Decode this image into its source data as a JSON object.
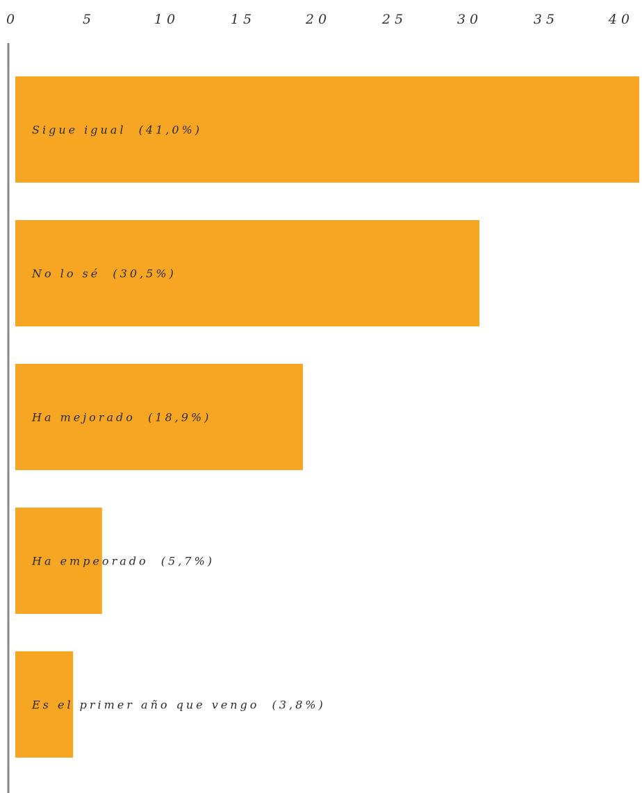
{
  "chart_data": {
    "type": "bar",
    "orientation": "horizontal",
    "categories": [
      "Sigue igual  (41,0%)",
      "No lo sé  (30,5%)",
      "Ha mejorado  (18,9%)",
      "Ha empeorado  (5,7%)",
      "Es el primer año que vengo  (3,8%)"
    ],
    "values": [
      41.0,
      30.5,
      18.9,
      5.7,
      3.8
    ],
    "xlim": [
      0,
      41
    ],
    "xticks": [
      0,
      5,
      10,
      15,
      20,
      25,
      30,
      35,
      40
    ],
    "xtick_labels": [
      "0",
      "5",
      "10",
      "15",
      "20",
      "25",
      "30",
      "35",
      "40"
    ],
    "axis_position": "top",
    "grid": false,
    "bar_color": "#F6A623",
    "axis_color": "#888888"
  }
}
